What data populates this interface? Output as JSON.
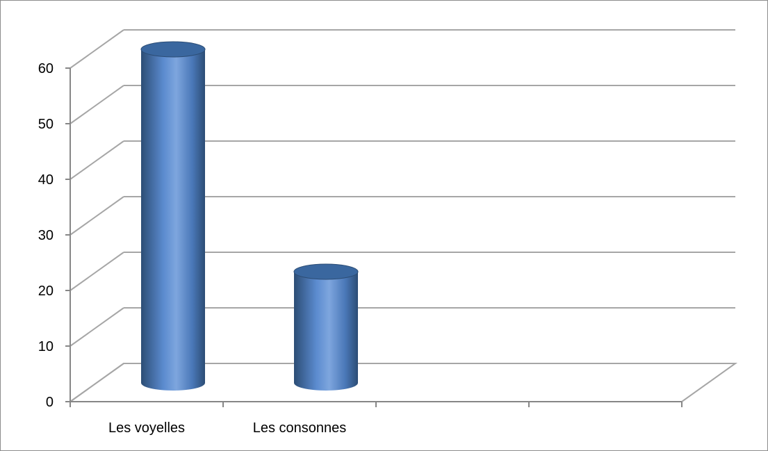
{
  "chart_data": {
    "type": "bar",
    "style": "3d-cylinder",
    "categories": [
      "Les voyelles",
      "Les consonnes",
      "",
      ""
    ],
    "series": [
      {
        "values": [
          60,
          20,
          null,
          null
        ]
      }
    ],
    "title": "",
    "xlabel": "",
    "ylabel": "",
    "ylim": [
      0,
      60
    ],
    "yticks": [
      0,
      10,
      20,
      30,
      40,
      50,
      60
    ],
    "ytick_labels": [
      "0",
      "10",
      "20",
      "30",
      "40",
      "50",
      "60"
    ],
    "grid": true,
    "legend": false
  },
  "colors": {
    "bar_base": "#4f81bd",
    "bar_light": "#7ea6de",
    "bar_dark": "#2c4d75",
    "bar_top": "#3a679f",
    "grid": "#a6a6a6",
    "axis": "#868686"
  }
}
